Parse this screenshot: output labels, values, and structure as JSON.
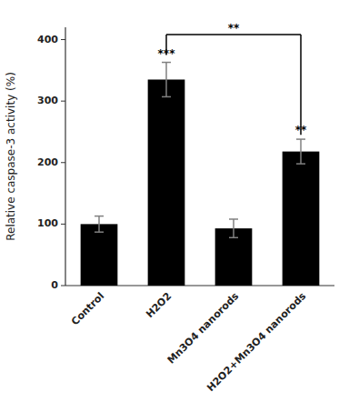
{
  "chart_data": {
    "type": "bar",
    "categories": [
      "Control",
      "H2O2",
      "Mn3O4 nanorods",
      "H2O2+Mn3O4 nanorods"
    ],
    "values": [
      100,
      335,
      93,
      218
    ],
    "errors": [
      13,
      28,
      15,
      20
    ],
    "color": "#000000",
    "ylabel": "Relative caspase-3 activity (%)",
    "ylim": [
      0,
      420
    ],
    "yticks": [
      0,
      100,
      200,
      300,
      400
    ],
    "significance_labels": [
      null,
      "***",
      null,
      "**"
    ],
    "annotations": [
      {
        "text": "**",
        "from": "H2O2",
        "to": "H2O2+Mn3O4 nanorods",
        "y": 408,
        "y_left": 375,
        "y_right": 245
      }
    ]
  }
}
